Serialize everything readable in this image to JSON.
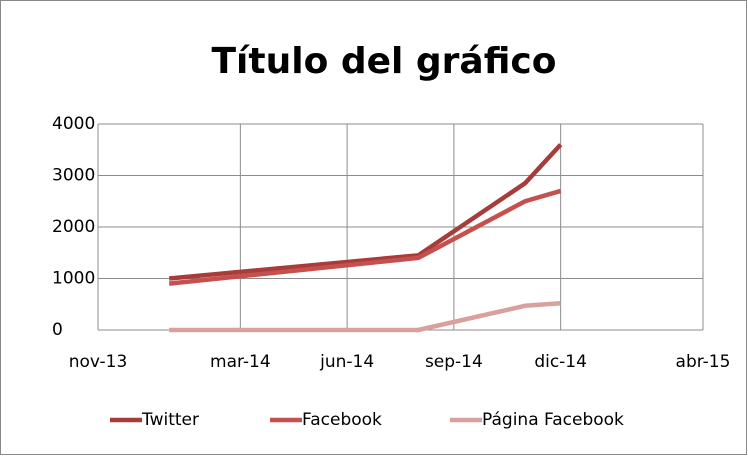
{
  "chart_data": {
    "type": "line",
    "title": "Título del gráfico",
    "x": [
      "2014-01",
      "2014-08",
      "2014-11",
      "2014-12"
    ],
    "series": [
      {
        "name": "Twitter",
        "color": "#a83c3a",
        "values": [
          1000,
          1450,
          2850,
          3600
        ]
      },
      {
        "name": "Facebook",
        "color": "#c5504d",
        "values": [
          900,
          1400,
          2500,
          2700
        ]
      },
      {
        "name": "Página Facebook",
        "color": "#d9a09d",
        "values": [
          0,
          0,
          470,
          520
        ]
      }
    ],
    "xlim": [
      "2013-11",
      "2015-04"
    ],
    "xticks": [
      {
        "value": "2013-11",
        "label": "nov-13"
      },
      {
        "value": "2014-03",
        "label": "mar-14"
      },
      {
        "value": "2014-06",
        "label": "jun-14"
      },
      {
        "value": "2014-09",
        "label": "sep-14"
      },
      {
        "value": "2014-12",
        "label": "dic-14"
      },
      {
        "value": "2015-04",
        "label": "abr-15"
      }
    ],
    "ylim": [
      0,
      4000
    ],
    "yticks": [
      0,
      1000,
      2000,
      3000,
      4000
    ],
    "grid": true,
    "legend": "bottom"
  }
}
